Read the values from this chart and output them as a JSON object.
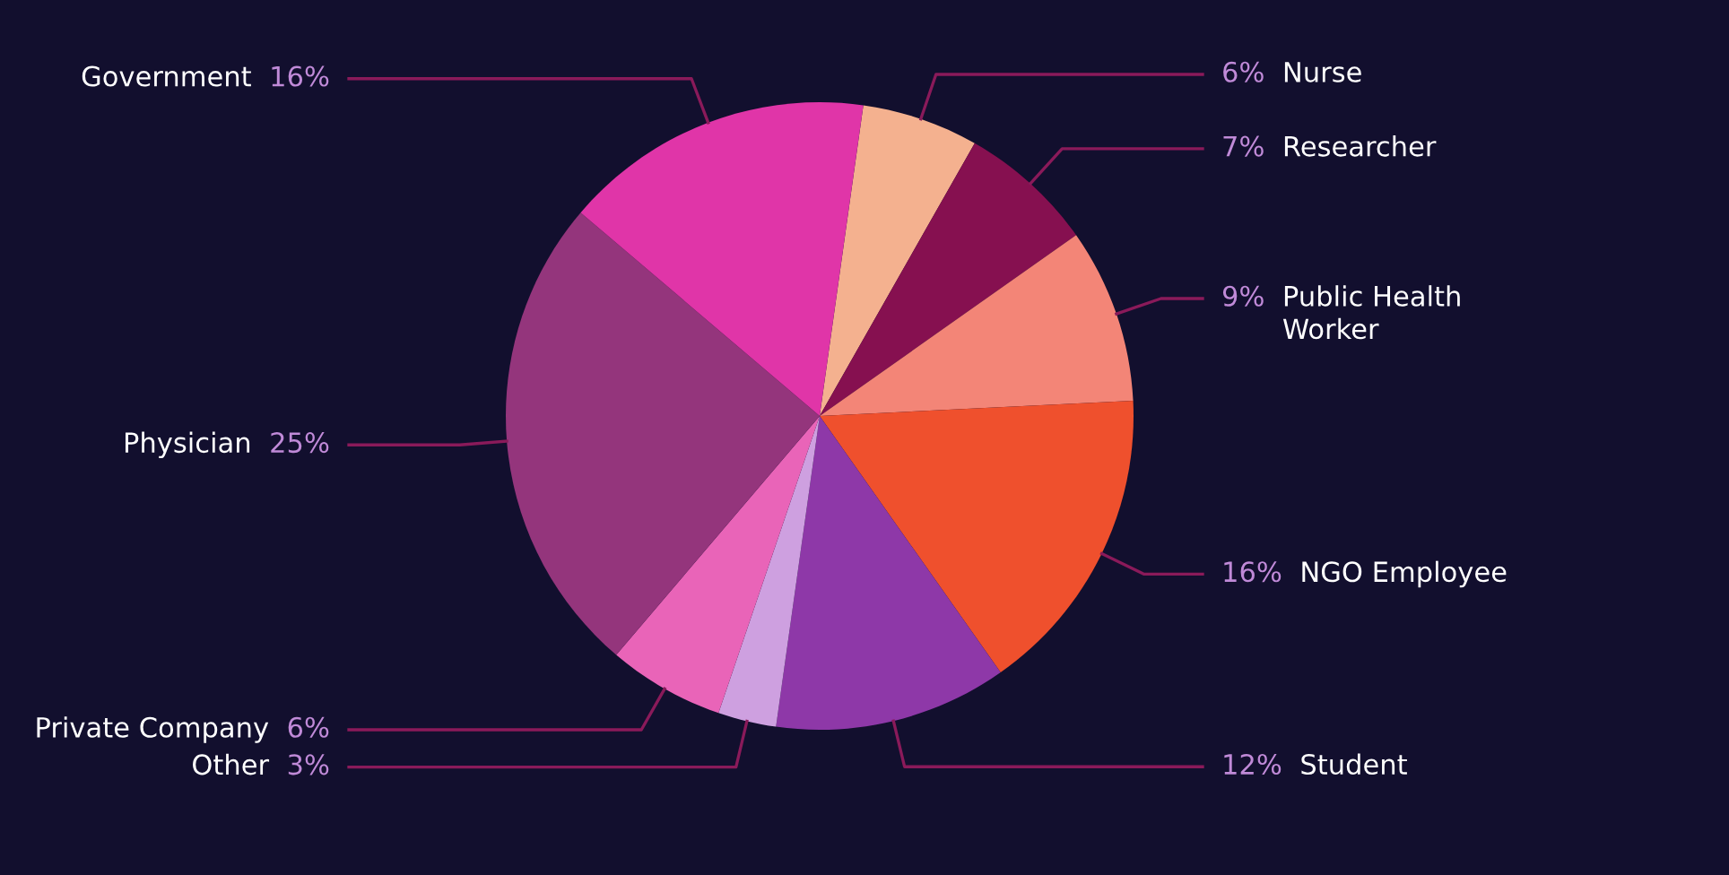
{
  "chart_data": {
    "type": "pie",
    "categories": [
      "Nurse",
      "Researcher",
      "Public Health\nWorker",
      "NGO Employee",
      "Student",
      "Other",
      "Private Company",
      "Physician",
      "Government"
    ],
    "values": [
      6,
      7,
      9,
      16,
      12,
      3,
      6,
      25,
      16
    ],
    "value_labels": [
      "6%",
      "7%",
      "9%",
      "16%",
      "12%",
      "3%",
      "6%",
      "25%",
      "16%"
    ],
    "colors": [
      "#f4b18f",
      "#861050",
      "#f38577",
      "#ef502d",
      "#8e38a8",
      "#cea0e0",
      "#e964b8",
      "#94357c",
      "#e035a8"
    ],
    "legend": false
  }
}
